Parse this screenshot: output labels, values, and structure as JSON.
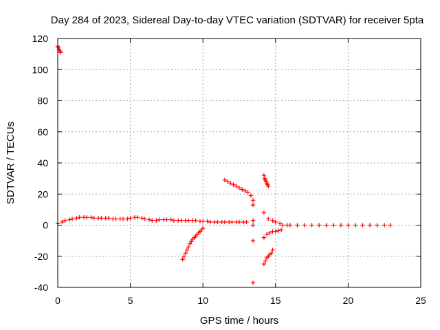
{
  "chart_data": {
    "type": "scatter",
    "title": "Day 284 of 2023, Sidereal Day-to-day VTEC variation (SDTVAR) for receiver 5pta",
    "xlabel": "GPS time / hours",
    "ylabel": "SDTVAR / TECUs",
    "xlim": [
      0,
      25
    ],
    "ylim": [
      -40,
      120
    ],
    "xticks": [
      0,
      5,
      10,
      15,
      20,
      25
    ],
    "yticks": [
      -40,
      -20,
      0,
      20,
      40,
      60,
      80,
      100,
      120
    ],
    "grid": true,
    "marker": "+",
    "colors": {
      "points": "#ff0000",
      "grid": "#a0a0a0",
      "axes": "#000000"
    },
    "series": [
      {
        "name": "main-band",
        "x": [
          0.0,
          0.3,
          0.5,
          0.8,
          1.0,
          1.3,
          1.5,
          1.8,
          2.0,
          2.3,
          2.5,
          2.8,
          3.0,
          3.3,
          3.5,
          3.8,
          4.0,
          4.3,
          4.5,
          4.8,
          5.0,
          5.3,
          5.5,
          5.8,
          6.0,
          6.3,
          6.5,
          6.8,
          7.0,
          7.3,
          7.5,
          7.8,
          8.0,
          8.3,
          8.5,
          8.8,
          9.0,
          9.3,
          9.5,
          9.8,
          10.0,
          10.3,
          10.5,
          10.8,
          11.0,
          11.3,
          11.5,
          11.8,
          12.0,
          12.3,
          12.5,
          12.8,
          13.0
        ],
        "y": [
          1.0,
          2.0,
          3.0,
          3.5,
          4.0,
          4.5,
          5.0,
          5.0,
          5.0,
          5.0,
          4.5,
          4.5,
          4.5,
          4.5,
          4.5,
          4.0,
          4.0,
          4.0,
          4.0,
          4.0,
          4.5,
          5.0,
          5.0,
          4.5,
          4.0,
          3.5,
          3.0,
          3.0,
          3.5,
          3.5,
          3.5,
          3.5,
          3.0,
          3.0,
          3.0,
          3.0,
          3.0,
          3.0,
          3.0,
          2.5,
          2.5,
          2.5,
          2.0,
          2.0,
          2.0,
          2.0,
          2.0,
          2.0,
          2.0,
          2.0,
          2.0,
          2.0,
          2.0
        ]
      },
      {
        "name": "start-outliers",
        "x": [
          0.0,
          0.05,
          0.1,
          0.15,
          0.2
        ],
        "y": [
          115,
          114,
          113,
          112,
          111
        ]
      },
      {
        "name": "arc-rising",
        "x": [
          8.6,
          8.7,
          8.8,
          8.9,
          9.0,
          9.1,
          9.2,
          9.3,
          9.4,
          9.5,
          9.6,
          9.7,
          9.8,
          9.9,
          10.0
        ],
        "y": [
          -22,
          -20,
          -18,
          -16,
          -14,
          -12,
          -10.5,
          -9,
          -8,
          -7,
          -6,
          -5,
          -4,
          -3,
          -2
        ]
      },
      {
        "name": "arc-falling",
        "x": [
          11.5,
          11.7,
          11.9,
          12.1,
          12.3,
          12.5,
          12.7,
          12.9,
          13.1,
          13.3
        ],
        "y": [
          29,
          28,
          27,
          26,
          25,
          24,
          23,
          22,
          21,
          19
        ]
      },
      {
        "name": "isolated-13.5",
        "x": [
          13.45,
          13.45,
          13.45,
          13.45,
          13.45,
          13.45
        ],
        "y": [
          16,
          13,
          3,
          0,
          -10,
          -37
        ]
      },
      {
        "name": "upper-14.3",
        "x": [
          14.2,
          14.25,
          14.3,
          14.35,
          14.4,
          14.45,
          14.5
        ],
        "y": [
          32,
          30,
          29,
          28,
          27,
          26,
          25
        ]
      },
      {
        "name": "lower-14.3",
        "x": [
          14.2,
          14.3,
          14.4,
          14.5,
          14.6,
          14.7,
          14.8
        ],
        "y": [
          -25,
          -23,
          -21,
          -20,
          -19,
          -18,
          -16
        ]
      },
      {
        "name": "post-15-band",
        "x": [
          14.2,
          14.5,
          14.8,
          15.0,
          15.3,
          15.5,
          15.8,
          16.0,
          16.5,
          17.0,
          17.5,
          18.0,
          18.5,
          19.0,
          19.5,
          20.0,
          20.5,
          21.0,
          21.5,
          22.0,
          22.5,
          22.9
        ],
        "y": [
          8,
          4,
          3,
          2,
          1,
          0,
          0,
          0,
          0,
          0,
          0,
          0,
          0,
          0,
          0,
          0,
          0,
          0,
          0,
          0,
          0,
          0
        ]
      },
      {
        "name": "lower-branch-14.3",
        "x": [
          14.2,
          14.4,
          14.6,
          14.8,
          15.0,
          15.2,
          15.4
        ],
        "y": [
          -8,
          -6,
          -5,
          -4,
          -4,
          -3.5,
          -3
        ]
      }
    ]
  }
}
